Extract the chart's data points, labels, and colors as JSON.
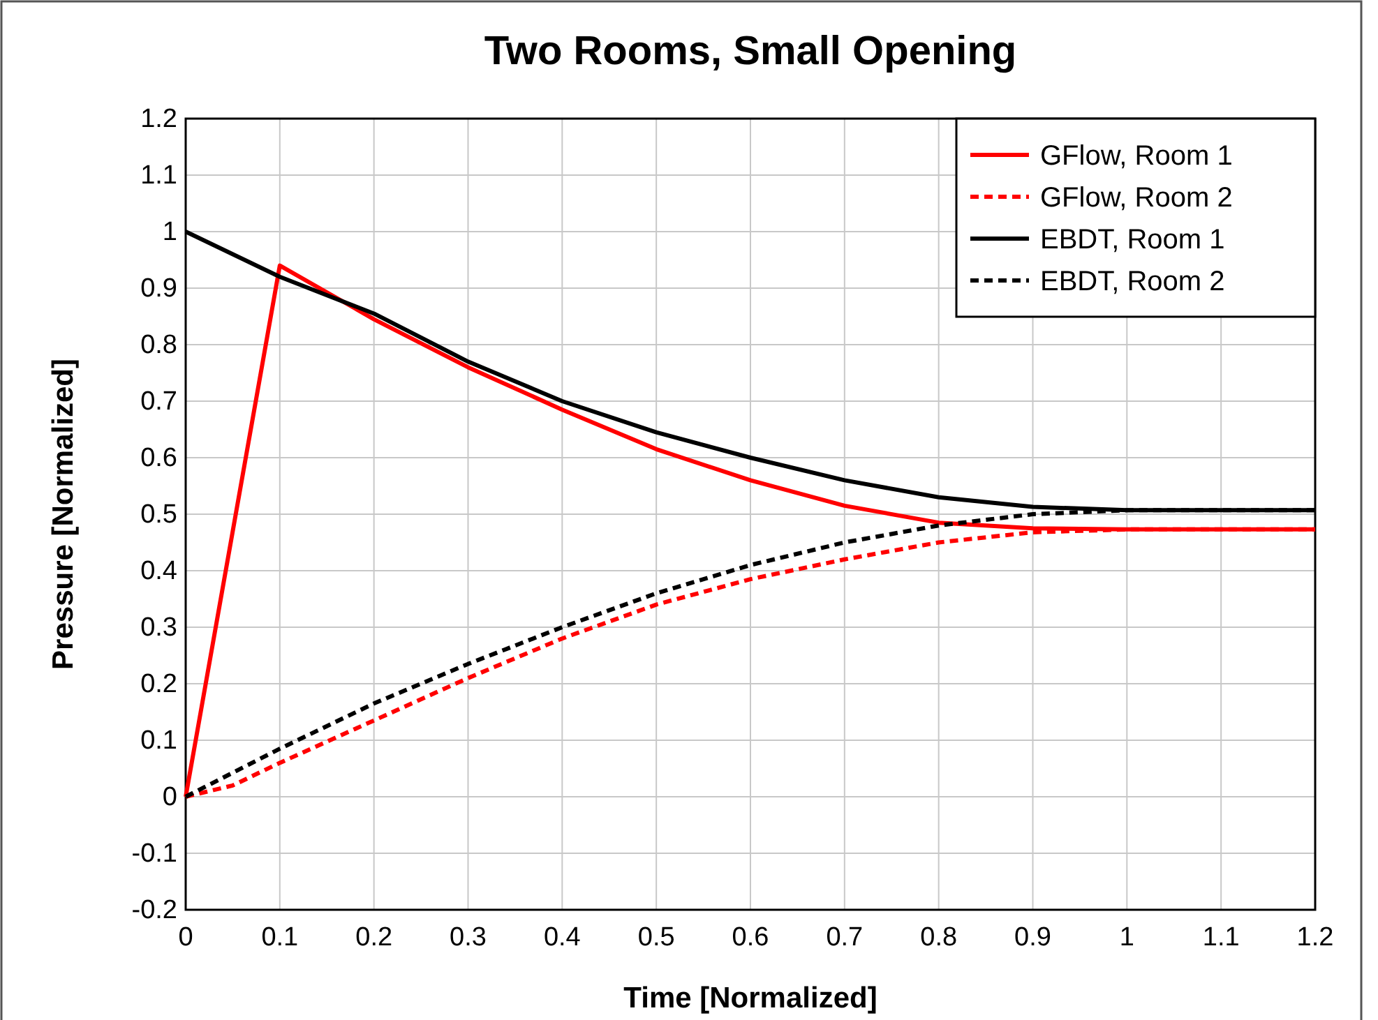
{
  "chart_data": {
    "type": "line",
    "title": "Two Rooms, Small Opening",
    "xlabel": "Time [Normalized]",
    "ylabel": "Pressure [Normalized]",
    "xlim": [
      0,
      1.2
    ],
    "xticks": [
      0,
      0.1,
      0.2,
      0.3,
      0.4,
      0.5,
      0.6,
      0.7,
      0.8,
      0.9,
      1,
      1.1,
      1.2
    ],
    "ylim": [
      -0.2,
      1.2
    ],
    "yticks": [
      -0.2,
      -0.1,
      0,
      0.1,
      0.2,
      0.3,
      0.4,
      0.5,
      0.6,
      0.7,
      0.8,
      0.9,
      1,
      1.1,
      1.2
    ],
    "grid": true,
    "legend": "top right",
    "marker": "none",
    "series": [
      {
        "name": "GFlow, Room 1",
        "color": "#ff0000",
        "line_style": "solid",
        "x": [
          0,
          0.1,
          0.2,
          0.3,
          0.4,
          0.5,
          0.6,
          0.7,
          0.8,
          0.9,
          1,
          1.2
        ],
        "values": [
          0,
          0.94,
          0.845,
          0.76,
          0.685,
          0.615,
          0.56,
          0.515,
          0.485,
          0.475,
          0.473,
          0.473
        ]
      },
      {
        "name": "GFlow, Room 2",
        "color": "#ff0000",
        "line_style": "dashed",
        "x": [
          0,
          0.05,
          0.1,
          0.2,
          0.3,
          0.4,
          0.5,
          0.6,
          0.7,
          0.8,
          0.9,
          1,
          1.2
        ],
        "values": [
          0,
          0.02,
          0.06,
          0.135,
          0.21,
          0.28,
          0.34,
          0.385,
          0.42,
          0.45,
          0.468,
          0.473,
          0.473
        ]
      },
      {
        "name": "EBDT, Room 1",
        "color": "#000000",
        "line_style": "solid",
        "x": [
          0,
          0.1,
          0.2,
          0.3,
          0.4,
          0.5,
          0.6,
          0.7,
          0.8,
          0.9,
          1,
          1.2
        ],
        "values": [
          1,
          0.92,
          0.855,
          0.77,
          0.7,
          0.645,
          0.6,
          0.56,
          0.53,
          0.513,
          0.507,
          0.507
        ]
      },
      {
        "name": "EBDT, Room 2",
        "color": "#000000",
        "line_style": "dashed",
        "x": [
          0,
          0.1,
          0.2,
          0.3,
          0.4,
          0.5,
          0.6,
          0.7,
          0.8,
          0.9,
          1,
          1.2
        ],
        "values": [
          0,
          0.085,
          0.165,
          0.235,
          0.3,
          0.36,
          0.41,
          0.45,
          0.48,
          0.5,
          0.507,
          0.507
        ]
      }
    ]
  }
}
